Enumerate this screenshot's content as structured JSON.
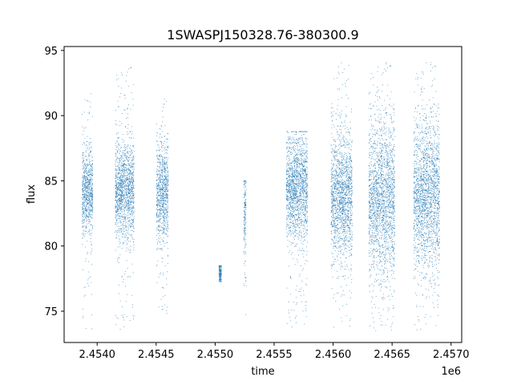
{
  "chart_data": {
    "type": "scatter",
    "title": "1SWASPJ150328.76-380300.9",
    "xlabel": "time",
    "ylabel": "flux",
    "x_offset_label": "1e6",
    "xlim": [
      2453720,
      2457090
    ],
    "ylim": [
      72.6,
      95.3
    ],
    "x_ticks": [
      2.454,
      2.4545,
      2.455,
      2.4555,
      2.456,
      2.4565,
      2.457
    ],
    "x_tick_labels": [
      "2.4540",
      "2.4545",
      "2.4550",
      "2.4555",
      "2.4560",
      "2.4565",
      "2.4570"
    ],
    "y_ticks": [
      75,
      80,
      85,
      90,
      95
    ],
    "y_tick_labels": [
      "75",
      "80",
      "85",
      "90",
      "95"
    ],
    "grid": false,
    "legend": "none",
    "point_color": "#1f77b4",
    "series": [
      {
        "values": "dense observation clusters",
        "clusters": [
          {
            "x_range": [
              2453870,
              2453960
            ],
            "y_center": 84.2,
            "y_core_spread": 1.6,
            "y_range": [
              73.6,
              91.8
            ]
          },
          {
            "x_range": [
              2454150,
              2454310
            ],
            "y_center": 84.3,
            "y_core_spread": 1.8,
            "y_range": [
              73.6,
              94.0
            ]
          },
          {
            "x_range": [
              2454500,
              2454600
            ],
            "y_center": 84.1,
            "y_core_spread": 1.9,
            "y_range": [
              74.8,
              91.3
            ]
          },
          {
            "x_range": [
              2455030,
              2455050
            ],
            "y_center": 78.0,
            "y_core_spread": 0.6,
            "y_range": [
              77.3,
              78.5
            ]
          },
          {
            "x_range": [
              2455240,
              2455260
            ],
            "y_center": 82.5,
            "y_core_spread": 2.0,
            "y_range": [
              74.5,
              85.0
            ]
          },
          {
            "x_range": [
              2455600,
              2455780
            ],
            "y_center": 84.5,
            "y_core_spread": 2.0,
            "y_range": [
              73.8,
              88.8
            ]
          },
          {
            "x_range": [
              2455980,
              2456160
            ],
            "y_center": 83.8,
            "y_core_spread": 2.3,
            "y_range": [
              73.8,
              94.1
            ]
          },
          {
            "x_range": [
              2456300,
              2456520
            ],
            "y_center": 83.6,
            "y_core_spread": 2.9,
            "y_range": [
              73.5,
              94.1
            ]
          },
          {
            "x_range": [
              2456680,
              2456900
            ],
            "y_center": 83.9,
            "y_core_spread": 2.8,
            "y_range": [
              73.6,
              94.1
            ]
          }
        ]
      }
    ]
  }
}
